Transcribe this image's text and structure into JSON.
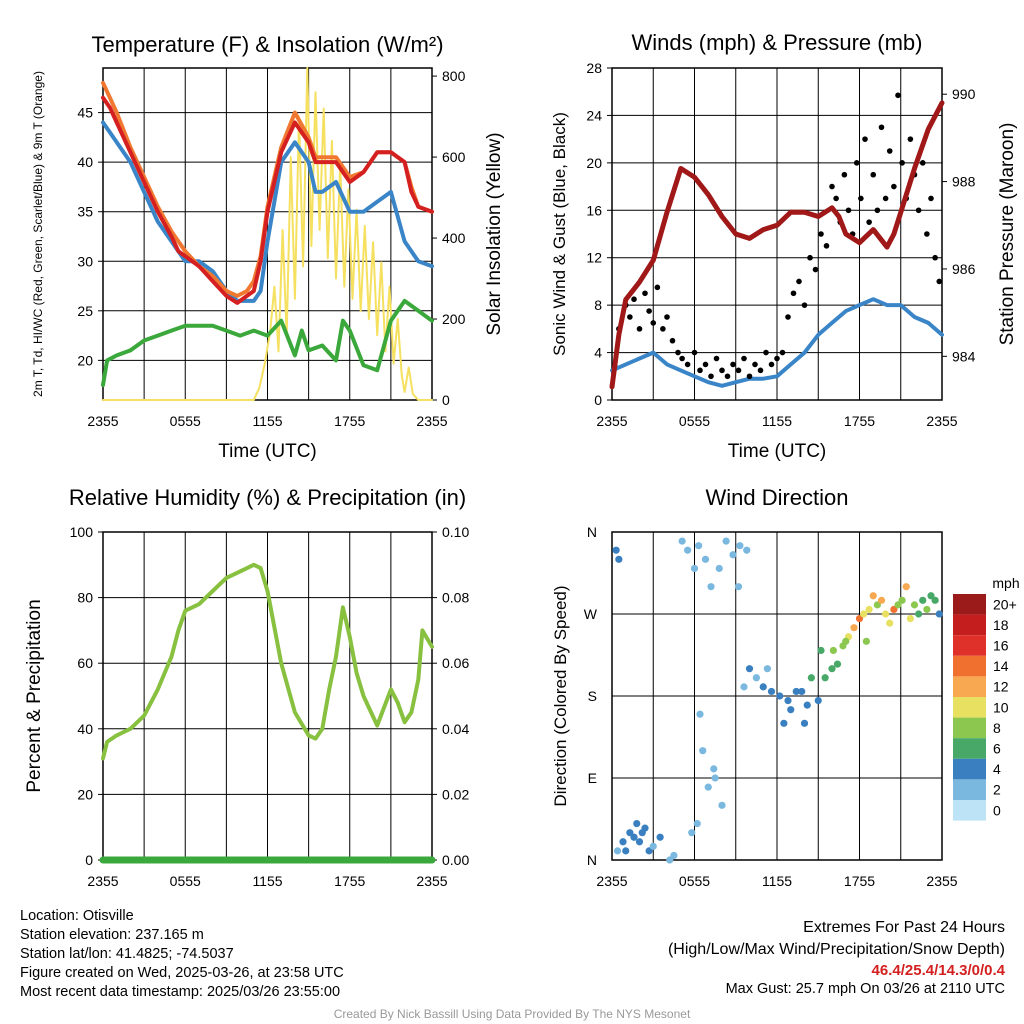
{
  "chart_data": [
    {
      "id": "temp",
      "type": "line",
      "title": "Temperature (F) & Insolation (W/m²)",
      "xlabel": "Time (UTC)",
      "ylabel_left": "2m T, Td, HI/WC (Red, Green, Scarlet/Blue) & 9m T (Orange)",
      "ylabel_right": "Solar Insolation (Yellow)",
      "x_ticks": [
        "2355",
        "0555",
        "1155",
        "1755",
        "2355"
      ],
      "y_left_ticks": [
        20,
        25,
        30,
        35,
        40,
        45
      ],
      "y_left_range": [
        16,
        49.5
      ],
      "y_right_ticks": [
        0,
        200,
        400,
        600,
        800
      ],
      "y_right_range": [
        0,
        820
      ],
      "x_range_hours": [
        0,
        24
      ],
      "series": [
        {
          "name": "2m T",
          "color": "#d42020",
          "axis": "left",
          "x": [
            0,
            0.5,
            1,
            2,
            3,
            4,
            5,
            5.5,
            6,
            7,
            8,
            9,
            9.8,
            10.5,
            11,
            11.5,
            12,
            13,
            14,
            15,
            15.5,
            16,
            17,
            18,
            19,
            20,
            21,
            22,
            22.5,
            23,
            24
          ],
          "y": [
            46.5,
            45.5,
            44,
            41,
            38,
            35,
            32.5,
            31,
            30.5,
            29.5,
            28,
            26.5,
            25.8,
            26.5,
            27,
            30,
            35,
            41,
            44,
            42,
            40,
            40,
            40,
            38,
            39,
            41,
            41,
            40,
            37,
            35.5,
            35
          ]
        },
        {
          "name": "9m T",
          "color": "#f07830",
          "axis": "left",
          "x": [
            0,
            0.5,
            1,
            2,
            3,
            4,
            5,
            5.5,
            6,
            7,
            8,
            9,
            9.8,
            10.5,
            11,
            11.5,
            12,
            13,
            14,
            15,
            15.5,
            16,
            17,
            18,
            19,
            20,
            21,
            22,
            22.5,
            23,
            24
          ],
          "y": [
            48,
            46.5,
            45,
            41.5,
            38.5,
            35.5,
            33,
            32,
            31,
            29.5,
            28.5,
            27,
            26.5,
            27,
            28,
            30.5,
            35.5,
            41.5,
            45,
            42.5,
            40.5,
            40.5,
            40.5,
            38.5,
            39,
            41,
            41,
            40,
            37.5,
            35.5,
            35
          ]
        },
        {
          "name": "HI/WC",
          "color": "#3a85c8",
          "axis": "left",
          "x": [
            0,
            0.5,
            1,
            2,
            3,
            4,
            5,
            5.5,
            6,
            7,
            8,
            9,
            9.8,
            10.5,
            11,
            11.5,
            12,
            13,
            14,
            15,
            15.5,
            16,
            17,
            18,
            19,
            20,
            21,
            22,
            22.5,
            23,
            24
          ],
          "y": [
            44,
            43,
            42,
            40,
            37,
            34,
            32,
            31,
            30,
            30,
            29,
            27,
            26,
            26,
            26,
            27,
            32,
            40,
            42,
            40,
            37,
            37,
            38,
            35,
            35,
            36,
            37,
            32,
            31,
            30,
            29.5
          ]
        },
        {
          "name": "2m Td",
          "color": "#3aa83a",
          "axis": "left",
          "x": [
            0,
            0.3,
            1,
            2,
            3,
            4,
            5,
            6,
            7,
            8,
            9,
            10,
            11,
            12,
            13,
            14,
            14.5,
            15,
            16,
            17,
            17.5,
            18,
            19,
            20,
            21,
            22,
            23,
            24
          ],
          "y": [
            17.5,
            20,
            20.5,
            21,
            22,
            22.5,
            23,
            23.5,
            23.5,
            23.5,
            23,
            22.5,
            23,
            22.5,
            24,
            20.5,
            23,
            21,
            21.5,
            20,
            24,
            23,
            19.5,
            19,
            24,
            26,
            25,
            24
          ]
        },
        {
          "name": "Solar Insolation",
          "color": "#f5e060",
          "axis": "right",
          "x": [
            0,
            11,
            11.4,
            11.8,
            12.2,
            12.5,
            12.8,
            13.1,
            13.4,
            13.7,
            14,
            14.3,
            14.6,
            14.9,
            15.2,
            15.5,
            15.8,
            16.1,
            16.4,
            16.7,
            17,
            17.3,
            17.6,
            17.9,
            18.2,
            18.5,
            18.8,
            19.1,
            19.4,
            19.7,
            20,
            20.3,
            20.6,
            20.9,
            21.2,
            21.5,
            21.8,
            22,
            22.3,
            22.6,
            23,
            24
          ],
          "y": [
            0,
            0,
            30,
            90,
            170,
            280,
            120,
            420,
            160,
            600,
            250,
            700,
            330,
            820,
            380,
            760,
            420,
            720,
            350,
            640,
            300,
            580,
            280,
            520,
            250,
            470,
            220,
            430,
            200,
            390,
            160,
            340,
            120,
            280,
            90,
            200,
            60,
            20,
            80,
            15,
            0,
            0
          ]
        }
      ]
    },
    {
      "id": "wind",
      "type": "line",
      "title": "Winds (mph) & Pressure (mb)",
      "xlabel": "Time (UTC)",
      "ylabel_left": "Sonic Wind & Gust (Blue, Black)",
      "ylabel_right": "Station Pressure (Maroon)",
      "x_ticks": [
        "2355",
        "0555",
        "1155",
        "1755",
        "2355"
      ],
      "y_left_ticks": [
        0,
        4,
        8,
        12,
        16,
        20,
        24,
        28
      ],
      "y_left_range": [
        0,
        28
      ],
      "y_right_ticks": [
        984,
        986,
        988,
        990
      ],
      "y_right_range": [
        983,
        990.6
      ],
      "x_range_hours": [
        0,
        24
      ],
      "series": [
        {
          "name": "Sonic Wind",
          "color": "#3a85c8",
          "axis": "left",
          "x": [
            0,
            1,
            2,
            3,
            4,
            5,
            6,
            7,
            8,
            9,
            10,
            11,
            12,
            13,
            14,
            15,
            16,
            17,
            18,
            19,
            20,
            21,
            22,
            23,
            24
          ],
          "y": [
            2.5,
            3,
            3.5,
            4,
            3,
            2.5,
            2,
            1.5,
            1.2,
            1.5,
            1.8,
            1.8,
            2,
            3,
            4,
            5.5,
            6.5,
            7.5,
            8,
            8.5,
            8,
            8,
            7,
            6.5,
            5.5
          ]
        },
        {
          "name": "Gust",
          "color": "#000000",
          "axis": "left",
          "style": "points",
          "x": [
            0.2,
            0.5,
            1,
            1.3,
            1.6,
            2,
            2.4,
            2.7,
            3,
            3.3,
            3.7,
            4,
            4.4,
            4.8,
            5.1,
            5.5,
            6,
            6.4,
            6.8,
            7.2,
            7.6,
            8,
            8.4,
            8.8,
            9.2,
            9.6,
            10,
            10.4,
            10.8,
            11.2,
            11.6,
            12,
            12.4,
            12.8,
            13.2,
            13.6,
            14,
            14.4,
            14.8,
            15.2,
            15.6,
            16,
            16.3,
            16.6,
            16.9,
            17.2,
            17.5,
            17.8,
            18.1,
            18.4,
            18.7,
            19,
            19.3,
            19.6,
            19.9,
            20.2,
            20.5,
            20.8,
            21.1,
            21.4,
            21.7,
            22,
            22.3,
            22.6,
            22.9,
            23.2,
            23.5,
            23.8
          ],
          "y": [
            3,
            6,
            8,
            7,
            8.5,
            6,
            9,
            7.5,
            6.5,
            9.5,
            6,
            7,
            5,
            4,
            3.5,
            3,
            4,
            2.5,
            3,
            2,
            3.5,
            2.5,
            2,
            3,
            2.5,
            3.5,
            2,
            3,
            2.5,
            4,
            3,
            3.5,
            4,
            7,
            9,
            10,
            8,
            12,
            11,
            14,
            13,
            18,
            17,
            15,
            19,
            16,
            14,
            20,
            17,
            22,
            15,
            19,
            16,
            23,
            17,
            21,
            18,
            25.7,
            20,
            17,
            22,
            19,
            16,
            20,
            14,
            17,
            12,
            10
          ]
        },
        {
          "name": "Station Pressure",
          "color": "#a01818",
          "axis": "right",
          "x": [
            0,
            0.5,
            1,
            2,
            3,
            4,
            5,
            6,
            7,
            8,
            9,
            10,
            11,
            12,
            13,
            14,
            15,
            16,
            16.5,
            17,
            18,
            19,
            20,
            20.5,
            21,
            22,
            23,
            24
          ],
          "y": [
            983.3,
            984.5,
            985.3,
            985.7,
            986.2,
            987.3,
            988.3,
            988.1,
            987.7,
            987.2,
            986.8,
            986.7,
            986.9,
            987,
            987.3,
            987.3,
            987.2,
            987.4,
            987.2,
            986.8,
            986.6,
            986.9,
            986.5,
            986.8,
            987.3,
            988.3,
            989.2,
            989.8
          ]
        }
      ]
    },
    {
      "id": "rh",
      "type": "line",
      "title": "Relative Humidity (%) & Precipitation (in)",
      "ylabel_left": "Percent & Precipitation",
      "x_ticks": [
        "2355",
        "0555",
        "1155",
        "1755",
        "2355"
      ],
      "y_left_ticks": [
        0,
        20,
        40,
        60,
        80,
        100
      ],
      "y_left_range": [
        0,
        100
      ],
      "y_right_ticks": [
        "0.00",
        "0.02",
        "0.04",
        "0.06",
        "0.08",
        "0.10"
      ],
      "y_right_range": [
        0,
        0.1
      ],
      "x_range_hours": [
        0,
        24
      ],
      "series": [
        {
          "name": "Relative Humidity",
          "color": "#88c040",
          "axis": "left",
          "x": [
            0,
            0.3,
            1,
            2,
            3,
            4,
            5,
            5.5,
            6,
            7,
            8,
            9,
            10,
            11,
            11.5,
            12,
            13,
            14,
            15,
            15.5,
            16,
            16.5,
            17,
            17.5,
            18,
            18.5,
            19,
            20,
            21,
            21.5,
            22,
            22.5,
            23,
            23.3,
            24
          ],
          "y": [
            31,
            36,
            38,
            40,
            44,
            52,
            62,
            70,
            76,
            78,
            82,
            86,
            88,
            90,
            89,
            82,
            60,
            45,
            38,
            37,
            40,
            52,
            62,
            77,
            68,
            57,
            50,
            41,
            52,
            48,
            42,
            45,
            55,
            70,
            65
          ]
        },
        {
          "name": "Precipitation",
          "color": "#3aa83a",
          "axis": "right",
          "x": [
            0,
            24
          ],
          "y": [
            0,
            0
          ]
        }
      ]
    },
    {
      "id": "dir",
      "type": "scatter",
      "title": "Wind Direction",
      "ylabel_left": "Direction (Colored By Speed)",
      "x_ticks": [
        "2355",
        "0555",
        "1155",
        "1755",
        "2355"
      ],
      "y_ticks": [
        "N",
        "E",
        "S",
        "W",
        "N"
      ],
      "y_range": [
        0,
        360
      ],
      "x_range_hours": [
        0,
        24
      ],
      "colorbar_title": "mph",
      "colorbar_labels": [
        "20+",
        "18",
        "16",
        "14",
        "12",
        "10",
        "8",
        "6",
        "4",
        "2",
        "0"
      ],
      "colorbar_colors": [
        "#9b1b1b",
        "#c41e1e",
        "#e0302a",
        "#f07030",
        "#f8a850",
        "#e8e060",
        "#8cc850",
        "#48a868",
        "#3a80c0",
        "#7ab8e0",
        "#bde4f6"
      ],
      "points": {
        "x": [
          0.3,
          0.5,
          1,
          1.3,
          1.6,
          2,
          2.4,
          0.4,
          0.8,
          1.8,
          2.2,
          2.7,
          3,
          3.5,
          4.2,
          4.5,
          5.1,
          5.5,
          6,
          6.3,
          6.8,
          7.2,
          7.8,
          8.3,
          8.8,
          9.3,
          9.8,
          5.8,
          6.2,
          7,
          7.5,
          9.2,
          10,
          10.5,
          11,
          11.6,
          12.2,
          12.8,
          13.4,
          14,
          14.5,
          15,
          15.5,
          16,
          16.4,
          16.8,
          17.2,
          17.6,
          18,
          18.3,
          18.7,
          19,
          19.3,
          19.6,
          19.9,
          20.2,
          20.5,
          20.8,
          21.1,
          21.4,
          21.7,
          22,
          22.3,
          22.6,
          22.9,
          23.2,
          23.5,
          23.8,
          11.3,
          12.5,
          13,
          14.2,
          15.2,
          16.1,
          17,
          18.5,
          6.4,
          6.6,
          7.4,
          8,
          9.6,
          13.8
        ],
        "y": [
          340,
          330,
          10,
          30,
          25,
          20,
          35,
          10,
          20,
          40,
          30,
          10,
          15,
          25,
          0,
          5,
          350,
          340,
          320,
          345,
          330,
          300,
          320,
          350,
          335,
          345,
          340,
          30,
          40,
          80,
          90,
          300,
          210,
          200,
          190,
          185,
          180,
          175,
          185,
          150,
          200,
          175,
          200,
          210,
          215,
          235,
          245,
          255,
          265,
          270,
          275,
          290,
          280,
          285,
          270,
          260,
          275,
          280,
          285,
          300,
          265,
          280,
          270,
          285,
          275,
          290,
          285,
          270,
          210,
          150,
          165,
          170,
          230,
          230,
          240,
          240,
          160,
          120,
          100,
          60,
          190,
          185
        ],
        "speed": [
          3,
          3,
          4,
          3,
          4,
          4,
          3,
          2,
          3,
          3,
          4,
          3,
          2,
          3,
          1,
          1,
          2,
          1,
          1,
          2,
          2,
          1,
          1,
          1,
          1,
          1,
          1,
          1,
          2,
          1,
          1,
          2,
          3,
          2,
          3,
          3,
          4,
          3,
          4,
          3,
          5,
          4,
          6,
          6,
          5,
          7,
          10,
          12,
          13,
          10,
          9,
          11,
          8,
          12,
          9,
          10,
          13,
          8,
          7,
          11,
          9,
          8,
          6,
          5,
          7,
          6,
          5,
          4,
          2,
          4,
          3,
          3,
          5,
          7,
          8,
          7,
          2,
          1,
          1,
          2,
          2,
          3
        ]
      }
    }
  ],
  "station": {
    "location": "Location: Otisville",
    "elevation": "Station elevation: 237.165 m",
    "latlon": "Station lat/lon: 41.4825; -74.5037",
    "created": "Figure created on Wed, 2025-03-26, at 23:58 UTC",
    "recent": "Most recent data timestamp: 2025/03/26 23:55:00"
  },
  "extremes": {
    "title": "Extremes For Past 24 Hours",
    "subtitle": "(High/Low/Max Wind/Precipitation/Snow Depth)",
    "values": "46.4/25.4/14.3/0/0.4",
    "max_gust": "Max Gust: 25.7 mph On 03/26 at 2110 UTC"
  },
  "credit": "Created By Nick Bassill Using Data Provided By The NYS Mesonet"
}
